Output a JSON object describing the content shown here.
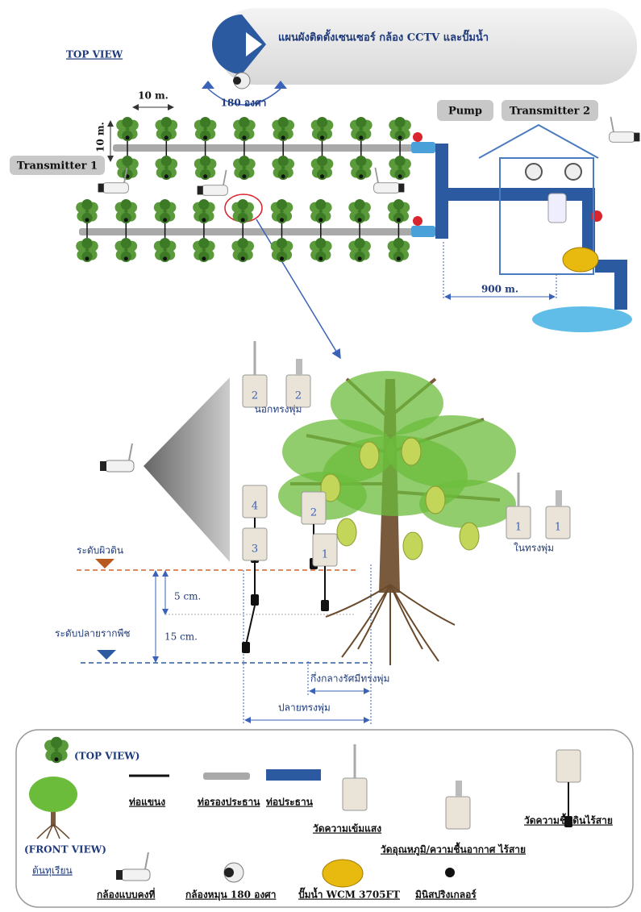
{
  "header": {
    "title": "แผนผังติดตั้งเซนเซอร์ กล้อง CCTV และปั๊มน้ำ",
    "view": "TOP VIEW"
  },
  "top_view": {
    "rotation": "180 องศา",
    "spacing_h": "10 m.",
    "spacing_v": "10 m.",
    "transmitter_1": "Transmitter 1",
    "pump": "Pump",
    "transmitter_2": "Transmitter 2",
    "distance": "900 m."
  },
  "front_view": {
    "sensor_numbers": [
      "2",
      "2",
      "4",
      "2",
      "3",
      "1",
      "1",
      "1"
    ],
    "outside_canopy": "นอกทรงพุ่ม",
    "inside_canopy": "ในทรงพุ่ม",
    "ground_level": "ระดับผิวดิน",
    "root_level": "ระดับปลายรากพืช",
    "depth_1": "5 cm.",
    "depth_2": "15 cm.",
    "mid_radius": "กึ่งกลางรัศมีทรงพุ่ม",
    "canopy_edge": "ปลายทรงพุ่ม"
  },
  "legend": {
    "top_view": "(TOP VIEW)",
    "front_view": "(FRONT VIEW)",
    "tree": "ต้นทุเรียน",
    "branch_pipe": "ท่อแขนง",
    "sub_main_pipe": "ท่อรองประธาน",
    "main_pipe": "ท่อประธาน",
    "light_sensor": "วัดความเข้มแสง",
    "air_sensor": "วัดอุณหภูมิ/ความชื้นอากาศ ไร้สาย",
    "soil_sensor": "วัดความชื้นดินไร้สาย",
    "fixed_camera": "กล้องแบบคงที่",
    "ptz_camera": "กล้องหมุน 180 องศา",
    "pump": "ปั๊มน้ำ WCM 3705FT",
    "sprinkler": "มินิสปริงเกลอร์"
  }
}
